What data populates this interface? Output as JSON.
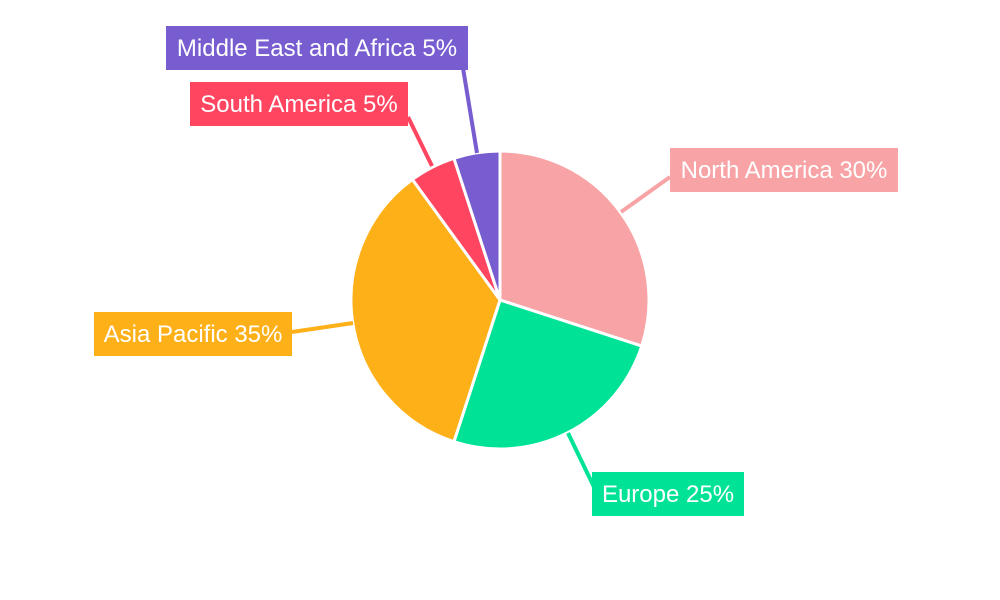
{
  "chart_data": {
    "type": "pie",
    "categories": [
      "North America",
      "Europe",
      "Asia Pacific",
      "South America",
      "Middle East and Africa"
    ],
    "values": [
      30,
      25,
      35,
      5,
      5
    ],
    "unit": "%",
    "labels": [
      "North America 30%",
      "Europe 25%",
      "Asia Pacific 35%",
      "South America 5%",
      "Middle East and Africa 5%"
    ],
    "colors": [
      "#F8A4A6",
      "#00E396",
      "#FEB019",
      "#FF4560",
      "#775DD0"
    ],
    "start_angle_deg": 0,
    "direction": "clockwise",
    "legend": "none"
  }
}
